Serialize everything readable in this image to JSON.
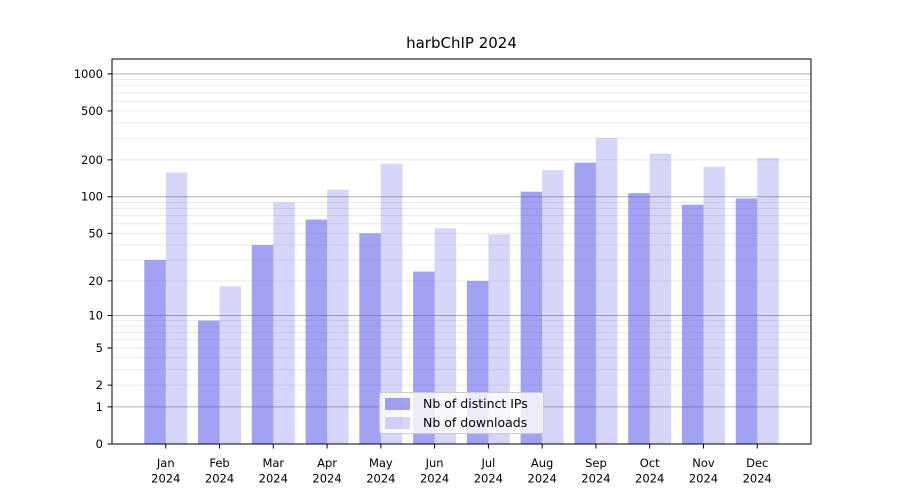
{
  "title": "harbChIP 2024",
  "chart_data": {
    "type": "bar",
    "title": "harbChIP 2024",
    "categories": [
      "Jan",
      "Feb",
      "Mar",
      "Apr",
      "May",
      "Jun",
      "Jul",
      "Aug",
      "Sep",
      "Oct",
      "Nov",
      "Dec"
    ],
    "year": "2024",
    "series": [
      {
        "name": "Nb of distinct IPs",
        "color": "rgba(70,70,230,0.50)",
        "values": [
          30,
          9,
          40,
          65,
          50,
          24,
          20,
          110,
          190,
          107,
          86,
          97
        ]
      },
      {
        "name": "Nb of downloads",
        "color": "rgba(70,70,230,0.22)",
        "values": [
          158,
          18,
          90,
          114,
          186,
          55,
          49,
          165,
          300,
          225,
          176,
          207
        ]
      }
    ],
    "y_ticks": [
      1000,
      500,
      200,
      100,
      50,
      20,
      10,
      5,
      2,
      1,
      0
    ],
    "y_scale": "log10(value+1)",
    "ylim": [
      0,
      1320
    ],
    "grid": true,
    "legend_position": "lower center"
  },
  "colors": {
    "background": "#ffffff",
    "axis": "#000000",
    "grid_major": "#b0b0b0",
    "grid_minor": "#eaeaea",
    "tick_text": "#000000",
    "legend_border": "#cccccc",
    "legend_background": "rgba(255,255,255,0.8)"
  }
}
